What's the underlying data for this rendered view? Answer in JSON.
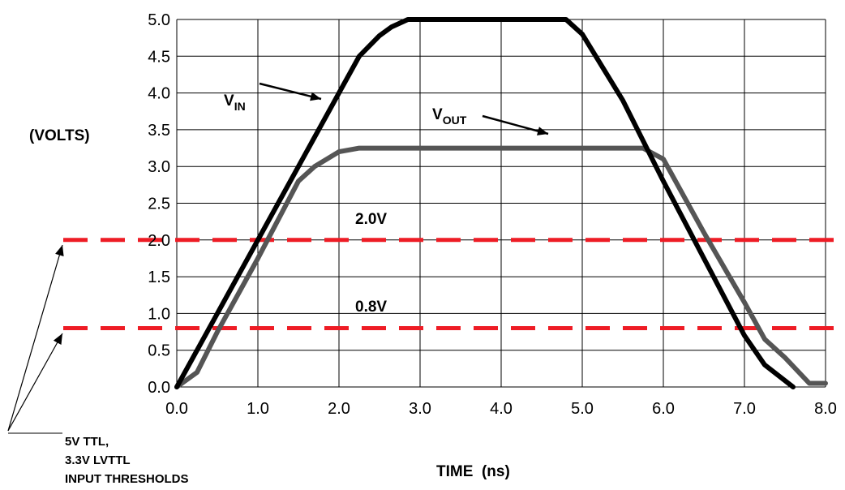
{
  "chart_data": {
    "type": "line",
    "xlabel": "TIME  (ns)",
    "ylabel": "(VOLTS)",
    "xlim": [
      0,
      8
    ],
    "ylim": [
      0,
      5
    ],
    "x_ticks": [
      "0.0",
      "1.0",
      "2.0",
      "3.0",
      "4.0",
      "5.0",
      "6.0",
      "7.0",
      "8.0"
    ],
    "y_ticks": [
      "0.0",
      "0.5",
      "1.0",
      "1.5",
      "2.0",
      "2.5",
      "3.0",
      "3.5",
      "4.0",
      "4.5",
      "5.0"
    ],
    "grid": true,
    "series": [
      {
        "name": "VIN",
        "label_main": "V",
        "label_sub": "IN",
        "color": "#000000",
        "x": [
          0.0,
          0.5,
          1.0,
          1.5,
          2.0,
          2.25,
          2.5,
          2.65,
          2.85,
          3.0,
          4.0,
          4.8,
          5.0,
          5.5,
          6.0,
          6.5,
          7.0,
          7.25,
          7.6
        ],
        "y": [
          0.0,
          1.0,
          2.0,
          3.0,
          4.0,
          4.5,
          4.78,
          4.9,
          5.0,
          5.0,
          5.0,
          5.0,
          4.8,
          3.9,
          2.8,
          1.75,
          0.7,
          0.3,
          0.0
        ]
      },
      {
        "name": "VOUT",
        "label_main": "V",
        "label_sub": "OUT",
        "color": "#555555",
        "x": [
          0.0,
          0.25,
          0.5,
          1.0,
          1.5,
          1.7,
          2.0,
          2.25,
          3.0,
          4.0,
          5.0,
          5.75,
          6.0,
          6.5,
          7.0,
          7.25,
          7.5,
          7.8,
          8.0
        ],
        "y": [
          0.0,
          0.2,
          0.75,
          1.75,
          2.8,
          3.0,
          3.2,
          3.25,
          3.25,
          3.25,
          3.25,
          3.25,
          3.1,
          2.1,
          1.15,
          0.65,
          0.4,
          0.05,
          0.05
        ]
      }
    ],
    "thresholds": [
      {
        "value": 2.0,
        "label": "2.0V",
        "color": "#ee1c25"
      },
      {
        "value": 0.8,
        "label": "0.8V",
        "color": "#ee1c25"
      }
    ],
    "annotation": [
      "5V TTL,",
      "3.3V LVTTL",
      "INPUT THRESHOLDS"
    ]
  }
}
